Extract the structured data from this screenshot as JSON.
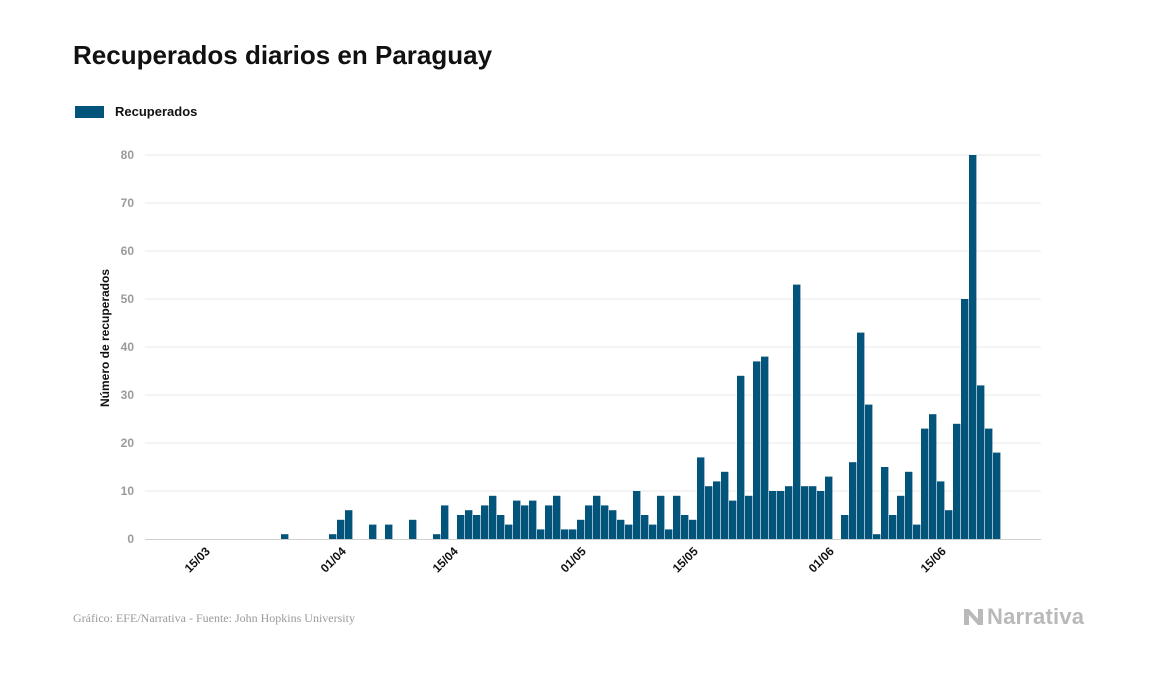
{
  "colors": {
    "bar": "#03547a",
    "grid": "#e8e8e8",
    "tick": "#9a9a9a",
    "brand": "#b9b9b9"
  },
  "brand": {
    "name": "Narrativa",
    "icon": "narrativa-n-icon"
  },
  "source": "Gráfico: EFE/Narrativa - Fuente: John Hopkins University",
  "chart_data": {
    "type": "bar",
    "title": "Recuperados diarios en Paraguay",
    "ylabel": "Número de recuperados",
    "xlabel": "",
    "legend": {
      "position": "top-left",
      "entries": [
        "Recuperados"
      ]
    },
    "grid": true,
    "ylim": [
      0,
      80
    ],
    "yticks": [
      0,
      10,
      20,
      30,
      40,
      50,
      60,
      70,
      80
    ],
    "x_start": "2020-03-10",
    "xticks": [
      {
        "label": "15/03",
        "index": 5
      },
      {
        "label": "01/04",
        "index": 22
      },
      {
        "label": "15/04",
        "index": 36
      },
      {
        "label": "01/05",
        "index": 52
      },
      {
        "label": "15/05",
        "index": 66
      },
      {
        "label": "01/06",
        "index": 83
      },
      {
        "label": "15/06",
        "index": 97
      }
    ],
    "series": [
      {
        "name": "Recuperados",
        "values": [
          0,
          0,
          0,
          0,
          0,
          0,
          0,
          0,
          0,
          0,
          0,
          0,
          0,
          0,
          0,
          1,
          0,
          0,
          0,
          0,
          0,
          1,
          4,
          6,
          0,
          0,
          3,
          0,
          3,
          0,
          0,
          4,
          0,
          0,
          1,
          7,
          0,
          5,
          6,
          5,
          7,
          9,
          5,
          3,
          8,
          7,
          8,
          2,
          7,
          9,
          2,
          2,
          4,
          7,
          9,
          7,
          6,
          4,
          3,
          10,
          5,
          3,
          9,
          2,
          9,
          5,
          4,
          17,
          11,
          12,
          14,
          8,
          34,
          9,
          37,
          38,
          10,
          10,
          11,
          53,
          11,
          11,
          10,
          13,
          0,
          5,
          16,
          43,
          28,
          1,
          15,
          5,
          9,
          14,
          3,
          23,
          26,
          12,
          6,
          24,
          50,
          80,
          32,
          23,
          18
        ]
      }
    ]
  }
}
